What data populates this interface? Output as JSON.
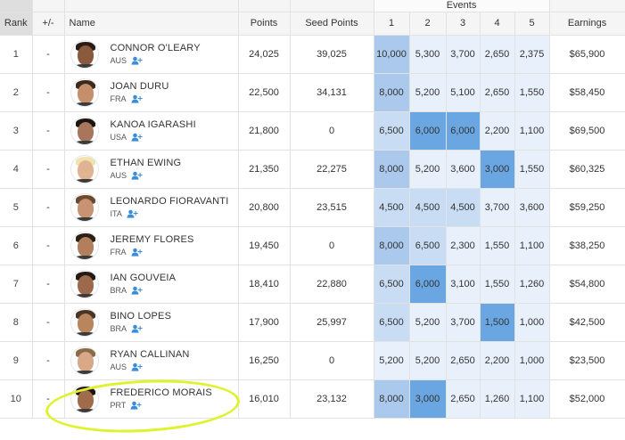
{
  "header": {
    "events_label": "Events",
    "rank": "Rank",
    "change": "+/-",
    "name": "Name",
    "points": "Points",
    "seed_points": "Seed Points",
    "events": [
      "1",
      "2",
      "3",
      "4",
      "5"
    ],
    "earnings": "Earnings"
  },
  "colors": {
    "event_low": "#e7f0fb",
    "event_mid": "#c8dcf3",
    "event_high": "#aac9ec",
    "event_top": "#6aa7e2",
    "highlight": "#dff22e",
    "follow": "#3a8ddb"
  },
  "rows": [
    {
      "rank": "1",
      "change": "-",
      "name": "CONNOR O'LEARY",
      "country": "AUS",
      "points": "24,025",
      "seed": "39,025",
      "events": [
        "10,000",
        "5,300",
        "3,700",
        "2,650",
        "2,375"
      ],
      "levels": [
        "high",
        "low",
        "low",
        "low",
        "low"
      ],
      "earnings": "$65,900",
      "skin": "#8a5a3c",
      "hair": "#2a1d16"
    },
    {
      "rank": "2",
      "change": "-",
      "name": "JOAN DURU",
      "country": "FRA",
      "points": "22,500",
      "seed": "34,131",
      "events": [
        "8,000",
        "5,200",
        "5,100",
        "2,650",
        "1,550"
      ],
      "levels": [
        "high",
        "low",
        "low",
        "low",
        "low"
      ],
      "earnings": "$58,450",
      "skin": "#c58f6c",
      "hair": "#3b2a1f"
    },
    {
      "rank": "3",
      "change": "-",
      "name": "KANOA IGARASHI",
      "country": "USA",
      "points": "21,800",
      "seed": "0",
      "events": [
        "6,500",
        "6,000",
        "6,000",
        "2,200",
        "1,100"
      ],
      "levels": [
        "mid",
        "top",
        "top",
        "low",
        "low"
      ],
      "earnings": "$69,500",
      "skin": "#a8765a",
      "hair": "#1d1410"
    },
    {
      "rank": "4",
      "change": "-",
      "name": "ETHAN EWING",
      "country": "AUS",
      "points": "21,350",
      "seed": "22,275",
      "events": [
        "8,000",
        "5,200",
        "3,600",
        "3,000",
        "1,550"
      ],
      "levels": [
        "high",
        "low",
        "low",
        "top",
        "low"
      ],
      "earnings": "$60,325",
      "skin": "#e0b493",
      "hair": "#f0e3b0"
    },
    {
      "rank": "5",
      "change": "-",
      "name": "LEONARDO FIORAVANTI",
      "country": "ITA",
      "points": "20,800",
      "seed": "23,515",
      "events": [
        "4,500",
        "4,500",
        "4,500",
        "3,700",
        "3,600"
      ],
      "levels": [
        "mid",
        "mid",
        "mid",
        "low",
        "low"
      ],
      "earnings": "$59,250",
      "skin": "#c79372",
      "hair": "#6b4a2e"
    },
    {
      "rank": "6",
      "change": "-",
      "name": "JEREMY FLORES",
      "country": "FRA",
      "points": "19,450",
      "seed": "0",
      "events": [
        "8,000",
        "6,500",
        "2,300",
        "1,550",
        "1,100"
      ],
      "levels": [
        "high",
        "mid",
        "low",
        "low",
        "low"
      ],
      "earnings": "$38,250",
      "skin": "#b27e5c",
      "hair": "#2b1e17"
    },
    {
      "rank": "7",
      "change": "-",
      "name": "IAN GOUVEIA",
      "country": "BRA",
      "points": "18,410",
      "seed": "22,880",
      "events": [
        "6,500",
        "6,000",
        "3,100",
        "1,550",
        "1,260"
      ],
      "levels": [
        "mid",
        "top",
        "low",
        "low",
        "low"
      ],
      "earnings": "$54,800",
      "skin": "#9c6a4a",
      "hair": "#241913"
    },
    {
      "rank": "8",
      "change": "-",
      "name": "BINO LOPES",
      "country": "BRA",
      "points": "17,900",
      "seed": "25,997",
      "events": [
        "6,500",
        "5,200",
        "3,700",
        "1,500",
        "1,000"
      ],
      "levels": [
        "mid",
        "low",
        "low",
        "top",
        "low"
      ],
      "earnings": "$42,500",
      "skin": "#b9855f",
      "hair": "#4a3424"
    },
    {
      "rank": "9",
      "change": "-",
      "name": "RYAN CALLINAN",
      "country": "AUS",
      "points": "16,250",
      "seed": "0",
      "events": [
        "5,200",
        "5,200",
        "2,650",
        "2,200",
        "1,000"
      ],
      "levels": [
        "low",
        "low",
        "low",
        "low",
        "low"
      ],
      "earnings": "$23,500",
      "skin": "#d8a888",
      "hair": "#8a6b4a"
    },
    {
      "rank": "10",
      "change": "-",
      "name": "FREDERICO MORAIS",
      "country": "PRT",
      "points": "16,010",
      "seed": "23,132",
      "events": [
        "8,000",
        "3,000",
        "2,650",
        "1,260",
        "1,100"
      ],
      "levels": [
        "high",
        "top",
        "low",
        "low",
        "low"
      ],
      "earnings": "$52,000",
      "skin": "#a06c4b",
      "hair": "#1e1510"
    }
  ]
}
